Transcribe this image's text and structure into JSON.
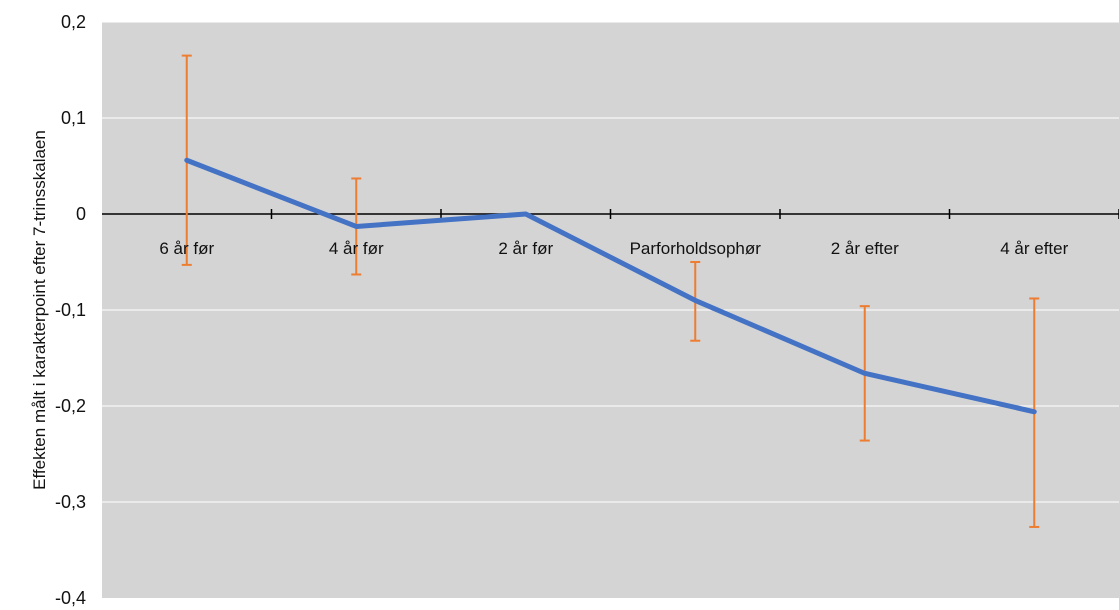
{
  "chart_data": {
    "type": "line",
    "title": "",
    "xlabel": "",
    "ylabel": "Effekten målt i karakterpoint efter 7-trinsskalaen",
    "ylim": [
      -0.4,
      0.2
    ],
    "y_ticks": [
      0.2,
      0.1,
      0,
      -0.1,
      -0.2,
      -0.3,
      -0.4
    ],
    "y_tick_labels": [
      "0,2",
      "0,1",
      "0",
      "-0,1",
      "-0,2",
      "-0,3",
      "-0,4"
    ],
    "categories": [
      "6 år før",
      "4 år før",
      "2 år før",
      "Parforholdsophør",
      "2 år efter",
      "4 år efter"
    ],
    "series": [
      {
        "values": [
          0.056,
          -0.013,
          0.0,
          -0.09,
          -0.166,
          -0.206
        ],
        "error_low": [
          -0.053,
          -0.063,
          0.0,
          -0.132,
          -0.236,
          -0.326
        ],
        "error_high": [
          0.165,
          0.037,
          0.0,
          -0.05,
          -0.096,
          -0.088
        ]
      }
    ],
    "grid": true,
    "legend": "none",
    "colors": {
      "plot_background": "#d4d4d4",
      "gridline": "#ffffff",
      "zero_axis": "#000000",
      "line": "#4472c4",
      "error_bar": "#ed7d31"
    }
  }
}
